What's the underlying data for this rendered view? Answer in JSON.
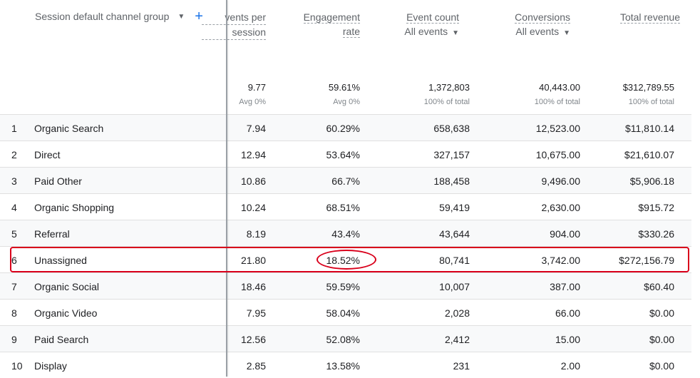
{
  "dimension_header": {
    "label": "Session default channel group",
    "dropdown_icon": "caret-down-icon",
    "add_icon": "plus-icon"
  },
  "columns": [
    {
      "title_line1": "vents per",
      "title_line2": "session",
      "total": "9.77",
      "total_sub": "Avg 0%"
    },
    {
      "title_line1": "Engagement",
      "title_line2": "rate",
      "total": "59.61%",
      "total_sub": "Avg 0%"
    },
    {
      "title_line1": "Event count",
      "selector": "All events",
      "total": "1,372,803",
      "total_sub": "100% of total"
    },
    {
      "title_line1": "Conversions",
      "selector": "All events",
      "total": "40,443.00",
      "total_sub": "100% of total"
    },
    {
      "title_line1": "Total revenue",
      "total": "$312,789.55",
      "total_sub": "100% of total"
    }
  ],
  "rows": [
    {
      "num": "1",
      "name": "Organic Search",
      "v": [
        "7.94",
        "60.29%",
        "658,638",
        "12,523.00",
        "$11,810.14"
      ]
    },
    {
      "num": "2",
      "name": "Direct",
      "v": [
        "12.94",
        "53.64%",
        "327,157",
        "10,675.00",
        "$21,610.07"
      ]
    },
    {
      "num": "3",
      "name": "Paid Other",
      "v": [
        "10.86",
        "66.7%",
        "188,458",
        "9,496.00",
        "$5,906.18"
      ]
    },
    {
      "num": "4",
      "name": "Organic Shopping",
      "v": [
        "10.24",
        "68.51%",
        "59,419",
        "2,630.00",
        "$915.72"
      ]
    },
    {
      "num": "5",
      "name": "Referral",
      "v": [
        "8.19",
        "43.4%",
        "43,644",
        "904.00",
        "$330.26"
      ]
    },
    {
      "num": "6",
      "name": "Unassigned",
      "v": [
        "21.80",
        "18.52%",
        "80,741",
        "3,742.00",
        "$272,156.79"
      ]
    },
    {
      "num": "7",
      "name": "Organic Social",
      "v": [
        "18.46",
        "59.59%",
        "10,007",
        "387.00",
        "$60.40"
      ]
    },
    {
      "num": "8",
      "name": "Organic Video",
      "v": [
        "7.95",
        "58.04%",
        "2,028",
        "66.00",
        "$0.00"
      ]
    },
    {
      "num": "9",
      "name": "Paid Search",
      "v": [
        "12.56",
        "52.08%",
        "2,412",
        "15.00",
        "$0.00"
      ]
    },
    {
      "num": "10",
      "name": "Display",
      "v": [
        "2.85",
        "13.58%",
        "231",
        "2.00",
        "$0.00"
      ]
    }
  ],
  "colors": {
    "highlight": "#d9001b",
    "accent": "#1a73e8"
  }
}
